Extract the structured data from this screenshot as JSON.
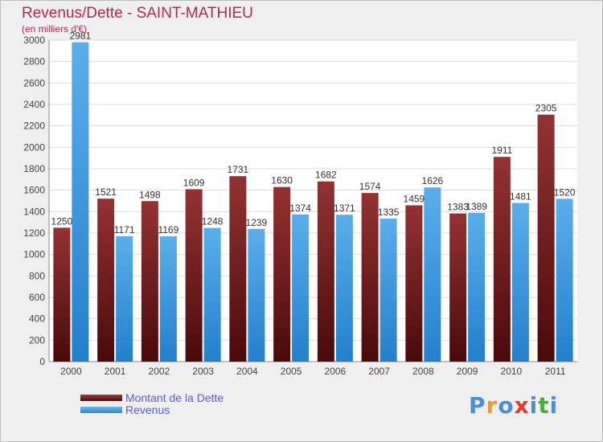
{
  "header": {
    "title": "Revenus/Dette - SAINT-MATHIEU",
    "subtitle": "(en milliers d'€)"
  },
  "colors": {
    "dette": "#7a1f1f",
    "revenus": "#3d9be0",
    "title": "#b5294e",
    "legend_text": "#5b5bd6"
  },
  "chart_data": {
    "type": "bar",
    "title": "Revenus/Dette - SAINT-MATHIEU",
    "subtitle": "(en milliers d'€)",
    "categories": [
      "2000",
      "2001",
      "2002",
      "2003",
      "2004",
      "2005",
      "2006",
      "2007",
      "2008",
      "2009",
      "2010",
      "2011"
    ],
    "series": [
      {
        "name": "Montant de la Dette",
        "values": [
          1250,
          1521,
          1498,
          1609,
          1731,
          1630,
          1682,
          1574,
          1459,
          1383,
          1911,
          2305
        ]
      },
      {
        "name": "Revenus",
        "values": [
          2981,
          1171,
          1169,
          1248,
          1239,
          1374,
          1371,
          1335,
          1626,
          1389,
          1481,
          1520
        ]
      }
    ],
    "yticks": [
      0,
      200,
      400,
      600,
      800,
      1000,
      1200,
      1400,
      1600,
      1800,
      2000,
      2200,
      2400,
      2600,
      2800,
      3000
    ],
    "ylim": [
      0,
      3000
    ],
    "grid": true,
    "legend_position": "bottom-left"
  },
  "legend": {
    "items": [
      {
        "label": "Montant de la Dette",
        "color": "#7a1f1f"
      },
      {
        "label": "Revenus",
        "color": "#3d9be0"
      }
    ]
  },
  "logo": {
    "text": "Proxiti"
  }
}
